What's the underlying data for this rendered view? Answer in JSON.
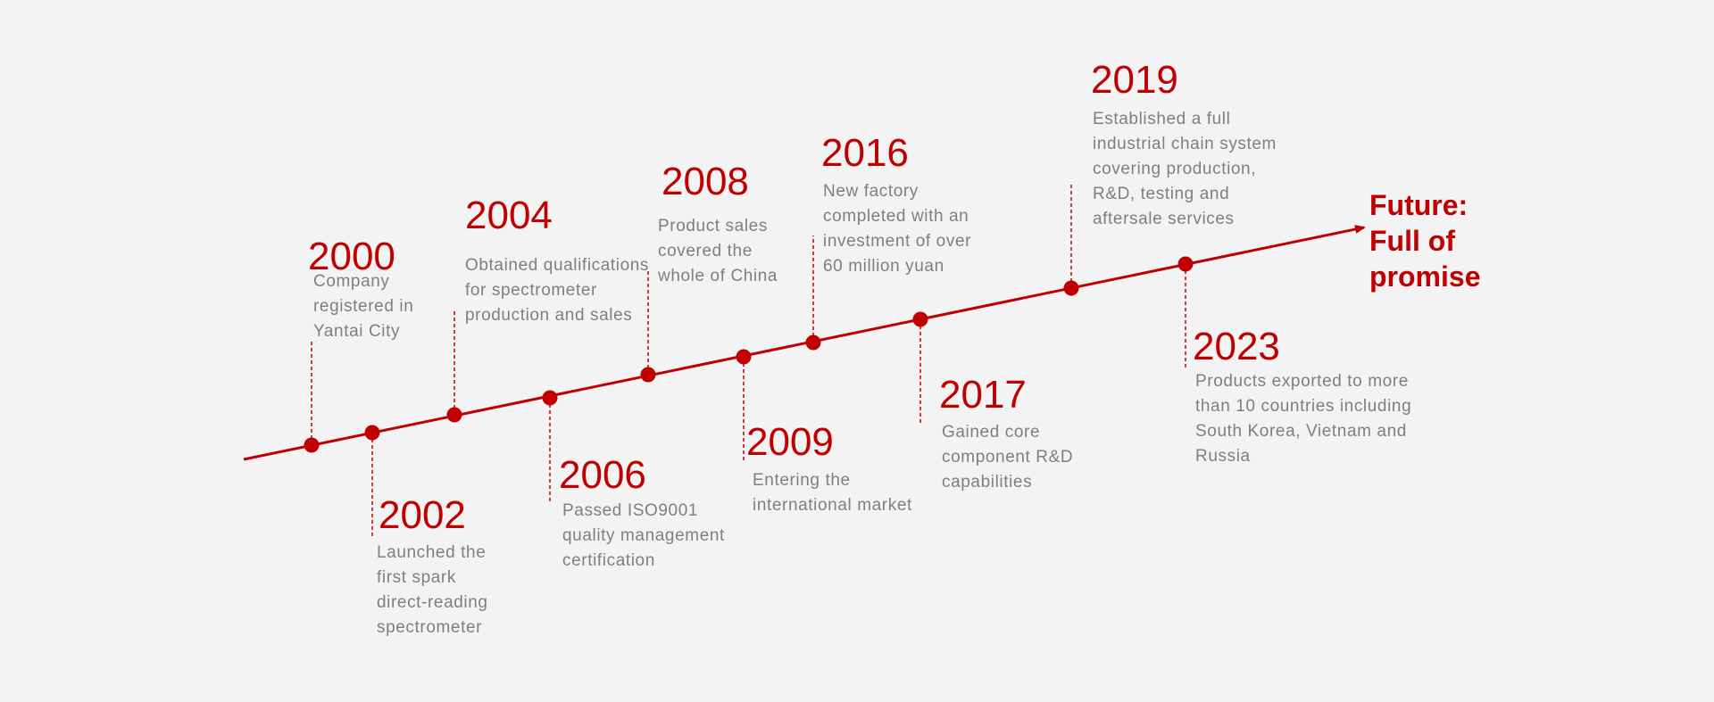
{
  "colors": {
    "accent": "#c00000",
    "text": "#7f7f7f",
    "background": "#f3f3f3"
  },
  "milestones": [
    {
      "year": "2000",
      "desc": "Company registered in Yantai City"
    },
    {
      "year": "2002",
      "desc": "Launched the first spark direct-reading spectrometer"
    },
    {
      "year": "2004",
      "desc": "Obtained qualifications for spectrometer production and sales"
    },
    {
      "year": "2006",
      "desc": "Passed ISO9001 quality management certification"
    },
    {
      "year": "2008",
      "desc": "Product sales covered the whole of China"
    },
    {
      "year": "2009",
      "desc": "Entering the international market"
    },
    {
      "year": "2016",
      "desc": "New factory completed with an investment of over 60 million yuan"
    },
    {
      "year": "2017",
      "desc": "Gained core component R&D capabilities"
    },
    {
      "year": "2019",
      "desc": "Established a full industrial chain system covering production, R&D, testing and aftersale services"
    },
    {
      "year": "2023",
      "desc": "Products exported to more than 10 countries including South Korea, Vietnam and Russia"
    }
  ],
  "future": "Future:\nFull of\npromise"
}
